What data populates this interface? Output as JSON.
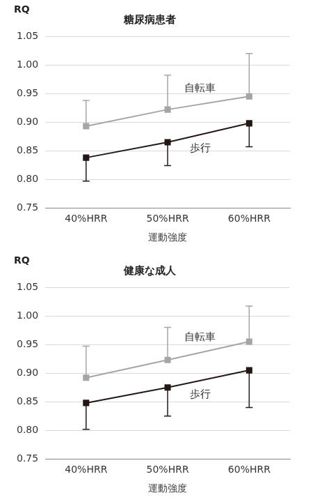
{
  "chart_data": [
    {
      "type": "line",
      "title": "糖尿病患者",
      "y_label": "RQ",
      "x_label": "運動強度",
      "categories": [
        "40%HRR",
        "50%HRR",
        "60%HRR"
      ],
      "series": [
        {
          "name": "自転車",
          "color": "#a5a5a5",
          "marker": "square",
          "values": [
            0.893,
            0.922,
            0.945
          ],
          "error_plus": [
            0.045,
            0.06,
            0.075
          ]
        },
        {
          "name": "歩行",
          "color": "#231815",
          "marker": "square",
          "values": [
            0.838,
            0.865,
            0.898
          ],
          "error_minus": [
            0.041,
            0.041,
            0.041
          ]
        }
      ],
      "ylim": [
        0.75,
        1.05
      ],
      "yticks": [
        0.75,
        {
          "value": 0.8,
          "label": "0.80"
        },
        0.85,
        {
          "value": 0.9,
          "label": "0.90"
        },
        0.95,
        {
          "value": 1,
          "label": "1.00"
        },
        1.05
      ],
      "grid": true
    },
    {
      "type": "line",
      "title": "健康な成人",
      "y_label": "RQ",
      "x_label": "運動強度",
      "categories": [
        "40%HRR",
        "50%HRR",
        "60%HRR"
      ],
      "series": [
        {
          "name": "自転車",
          "color": "#a5a5a5",
          "marker": "square",
          "values": [
            0.892,
            0.923,
            0.955
          ],
          "error_plus": [
            0.055,
            0.057,
            0.062
          ]
        },
        {
          "name": "歩行",
          "color": "#231815",
          "marker": "square",
          "values": [
            0.848,
            0.875,
            0.905
          ],
          "error_minus": [
            0.046,
            0.05,
            0.065
          ]
        }
      ],
      "ylim": [
        0.75,
        1.05
      ],
      "yticks": [
        0.75,
        {
          "value": 0.8,
          "label": "0.80"
        },
        0.85,
        {
          "value": 0.9,
          "label": "0.90"
        },
        0.95,
        {
          "value": 1,
          "label": "1.00"
        },
        1.05
      ],
      "grid": true
    }
  ]
}
